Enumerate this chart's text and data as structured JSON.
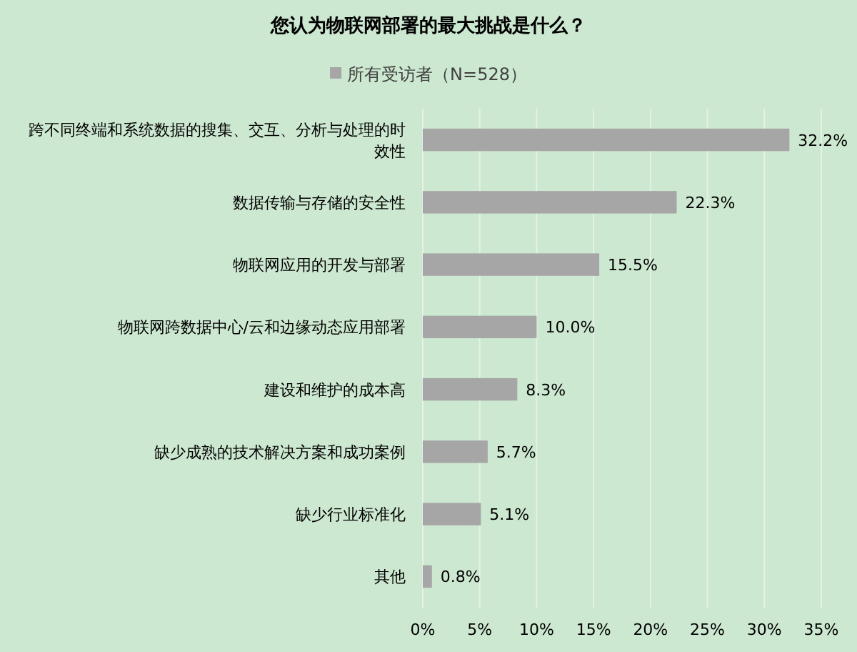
{
  "chart_data": {
    "type": "bar",
    "orientation": "horizontal",
    "title": "您认为物联网部署的最大挑战是什么？",
    "categories": [
      "跨不同终端和系统数据的搜集、交互、分析与处理的时效性",
      "数据传输与存储的安全性",
      "物联网应用的开发与部署",
      "物联网跨数据中心/云和边缘动态应用部署",
      "建设和维护的成本高",
      "缺少成熟的技术解决方案和成功案例",
      "缺少行业标准化",
      "其他"
    ],
    "series": [
      {
        "name": "所有受访者（N=528）",
        "color": "#a6a6a6",
        "values": [
          32.2,
          22.3,
          15.5,
          10.0,
          8.3,
          5.7,
          5.1,
          0.8
        ],
        "value_labels": [
          "32.2%",
          "22.3%",
          "15.5%",
          "10.0%",
          "8.3%",
          "5.7%",
          "5.1%",
          "0.8%"
        ]
      }
    ],
    "xlim": [
      0,
      35
    ],
    "xticks": [
      {
        "value": 0,
        "label": "0%"
      },
      {
        "value": 5,
        "label": "5%"
      },
      {
        "value": 10,
        "label": "10%"
      },
      {
        "value": 15,
        "label": "15%"
      },
      {
        "value": 20,
        "label": "20%"
      },
      {
        "value": 25,
        "label": "25%"
      },
      {
        "value": 30,
        "label": "30%"
      },
      {
        "value": 35,
        "label": "35%"
      }
    ],
    "grid": "x",
    "legend": "top"
  }
}
